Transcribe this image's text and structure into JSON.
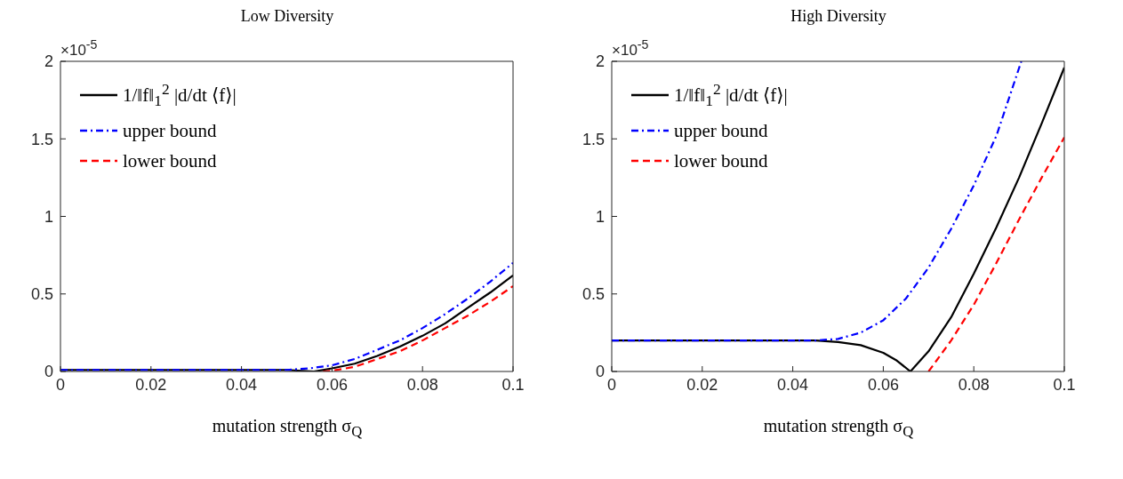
{
  "chart_data": [
    {
      "type": "line",
      "title": "Low Diversity",
      "xlabel": "mutation strength σ$_{Q}$",
      "annotations": [
        "×10$^{-5}$"
      ],
      "xlim": [
        0,
        0.1
      ],
      "xticks": [
        0,
        0.02,
        0.04,
        0.06,
        0.08,
        0.1
      ],
      "ylim": [
        0,
        2
      ],
      "yticks": [
        0,
        0.5,
        1,
        1.5,
        2
      ],
      "legend": "top left",
      "marker": "none",
      "series": [
        {
          "name": "1/‖f‖$_{1}$$^{2}$ |d/dt ⟨f⟩|",
          "color": "#000000",
          "line_style": "solid",
          "x": [
            0,
            0.01,
            0.02,
            0.03,
            0.04,
            0.05,
            0.056,
            0.06,
            0.065,
            0.07,
            0.075,
            0.08,
            0.085,
            0.09,
            0.095,
            0.1
          ],
          "values": [
            0.01,
            0.01,
            0.01,
            0.01,
            0.01,
            0.01,
            0,
            0.02,
            0.05,
            0.1,
            0.16,
            0.23,
            0.31,
            0.41,
            0.51,
            0.62
          ]
        },
        {
          "name": "upper bound",
          "color": "#0000ff",
          "line_style": "dashdot",
          "x": [
            0,
            0.01,
            0.02,
            0.03,
            0.04,
            0.05,
            0.055,
            0.06,
            0.065,
            0.07,
            0.075,
            0.08,
            0.085,
            0.09,
            0.095,
            0.1
          ],
          "values": [
            0.01,
            0.01,
            0.01,
            0.01,
            0.01,
            0.01,
            0.02,
            0.04,
            0.08,
            0.14,
            0.2,
            0.28,
            0.37,
            0.47,
            0.58,
            0.7
          ]
        },
        {
          "name": "lower bound",
          "color": "#ff0000",
          "line_style": "dashed",
          "x": [
            0.058,
            0.06,
            0.065,
            0.07,
            0.075,
            0.08,
            0.085,
            0.09,
            0.095,
            0.1
          ],
          "values": [
            0,
            0.005,
            0.03,
            0.08,
            0.13,
            0.2,
            0.28,
            0.36,
            0.45,
            0.55
          ]
        }
      ]
    },
    {
      "type": "line",
      "title": "High Diversity",
      "xlabel": "mutation strength σ$_{Q}$",
      "annotations": [
        "×10$^{-5}$"
      ],
      "xlim": [
        0,
        0.1
      ],
      "xticks": [
        0,
        0.02,
        0.04,
        0.06,
        0.08,
        0.1
      ],
      "ylim": [
        0,
        2
      ],
      "yticks": [
        0,
        0.5,
        1,
        1.5,
        2
      ],
      "legend": "top left",
      "marker": "none",
      "series": [
        {
          "name": "1/‖f‖$_{1}$$^{2}$ |d/dt ⟨f⟩|",
          "color": "#000000",
          "line_style": "solid",
          "x": [
            0,
            0.01,
            0.02,
            0.03,
            0.04,
            0.045,
            0.05,
            0.055,
            0.06,
            0.063,
            0.066,
            0.07,
            0.075,
            0.08,
            0.085,
            0.09,
            0.095,
            0.1
          ],
          "values": [
            0.2,
            0.2,
            0.2,
            0.2,
            0.2,
            0.2,
            0.19,
            0.17,
            0.12,
            0.07,
            0,
            0.13,
            0.35,
            0.63,
            0.93,
            1.25,
            1.6,
            1.96
          ]
        },
        {
          "name": "upper bound",
          "color": "#0000ff",
          "line_style": "dashdot",
          "x": [
            0,
            0.01,
            0.02,
            0.03,
            0.04,
            0.045,
            0.05,
            0.055,
            0.06,
            0.065,
            0.07,
            0.075,
            0.08,
            0.085,
            0.0905
          ],
          "values": [
            0.2,
            0.2,
            0.2,
            0.2,
            0.2,
            0.2,
            0.21,
            0.25,
            0.33,
            0.47,
            0.67,
            0.92,
            1.2,
            1.52,
            2
          ]
        },
        {
          "name": "lower bound",
          "color": "#ff0000",
          "line_style": "dashed",
          "x": [
            0.07,
            0.075,
            0.08,
            0.085,
            0.09,
            0.095,
            0.1
          ],
          "values": [
            0,
            0.2,
            0.43,
            0.7,
            0.98,
            1.25,
            1.51
          ]
        }
      ]
    }
  ]
}
